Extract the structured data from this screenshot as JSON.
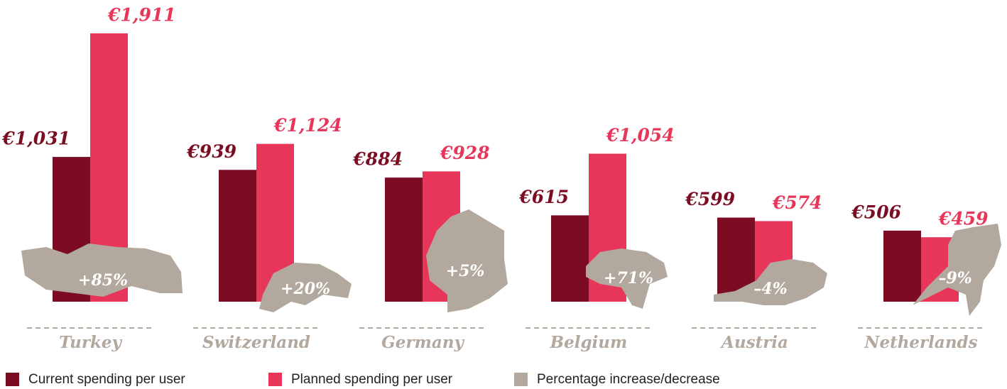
{
  "chart_data": {
    "type": "bar",
    "categories": [
      "Turkey",
      "Switzerland",
      "Germany",
      "Belgium",
      "Austria",
      "Netherlands"
    ],
    "series": [
      {
        "name": "Current spending per user",
        "color": "#7b0c22",
        "values": [
          1031,
          939,
          884,
          615,
          599,
          506
        ],
        "value_labels": [
          "€1,031",
          "€939",
          "€884",
          "€615",
          "€599",
          "€506"
        ]
      },
      {
        "name": "Planned spending per user",
        "color": "#e8365a",
        "values": [
          1911,
          1124,
          928,
          1054,
          574,
          459
        ],
        "value_labels": [
          "€1,911",
          "€1,124",
          "€928",
          "€1,054",
          "€574",
          "€459"
        ]
      },
      {
        "name": "Percentage increase/decrease",
        "color": "#b2a89e",
        "values": [
          85,
          20,
          5,
          71,
          -4,
          -9
        ],
        "value_labels": [
          "+85%",
          "+20%",
          "+5%",
          "+71%",
          "–4%",
          "–9%"
        ]
      }
    ]
  }
}
